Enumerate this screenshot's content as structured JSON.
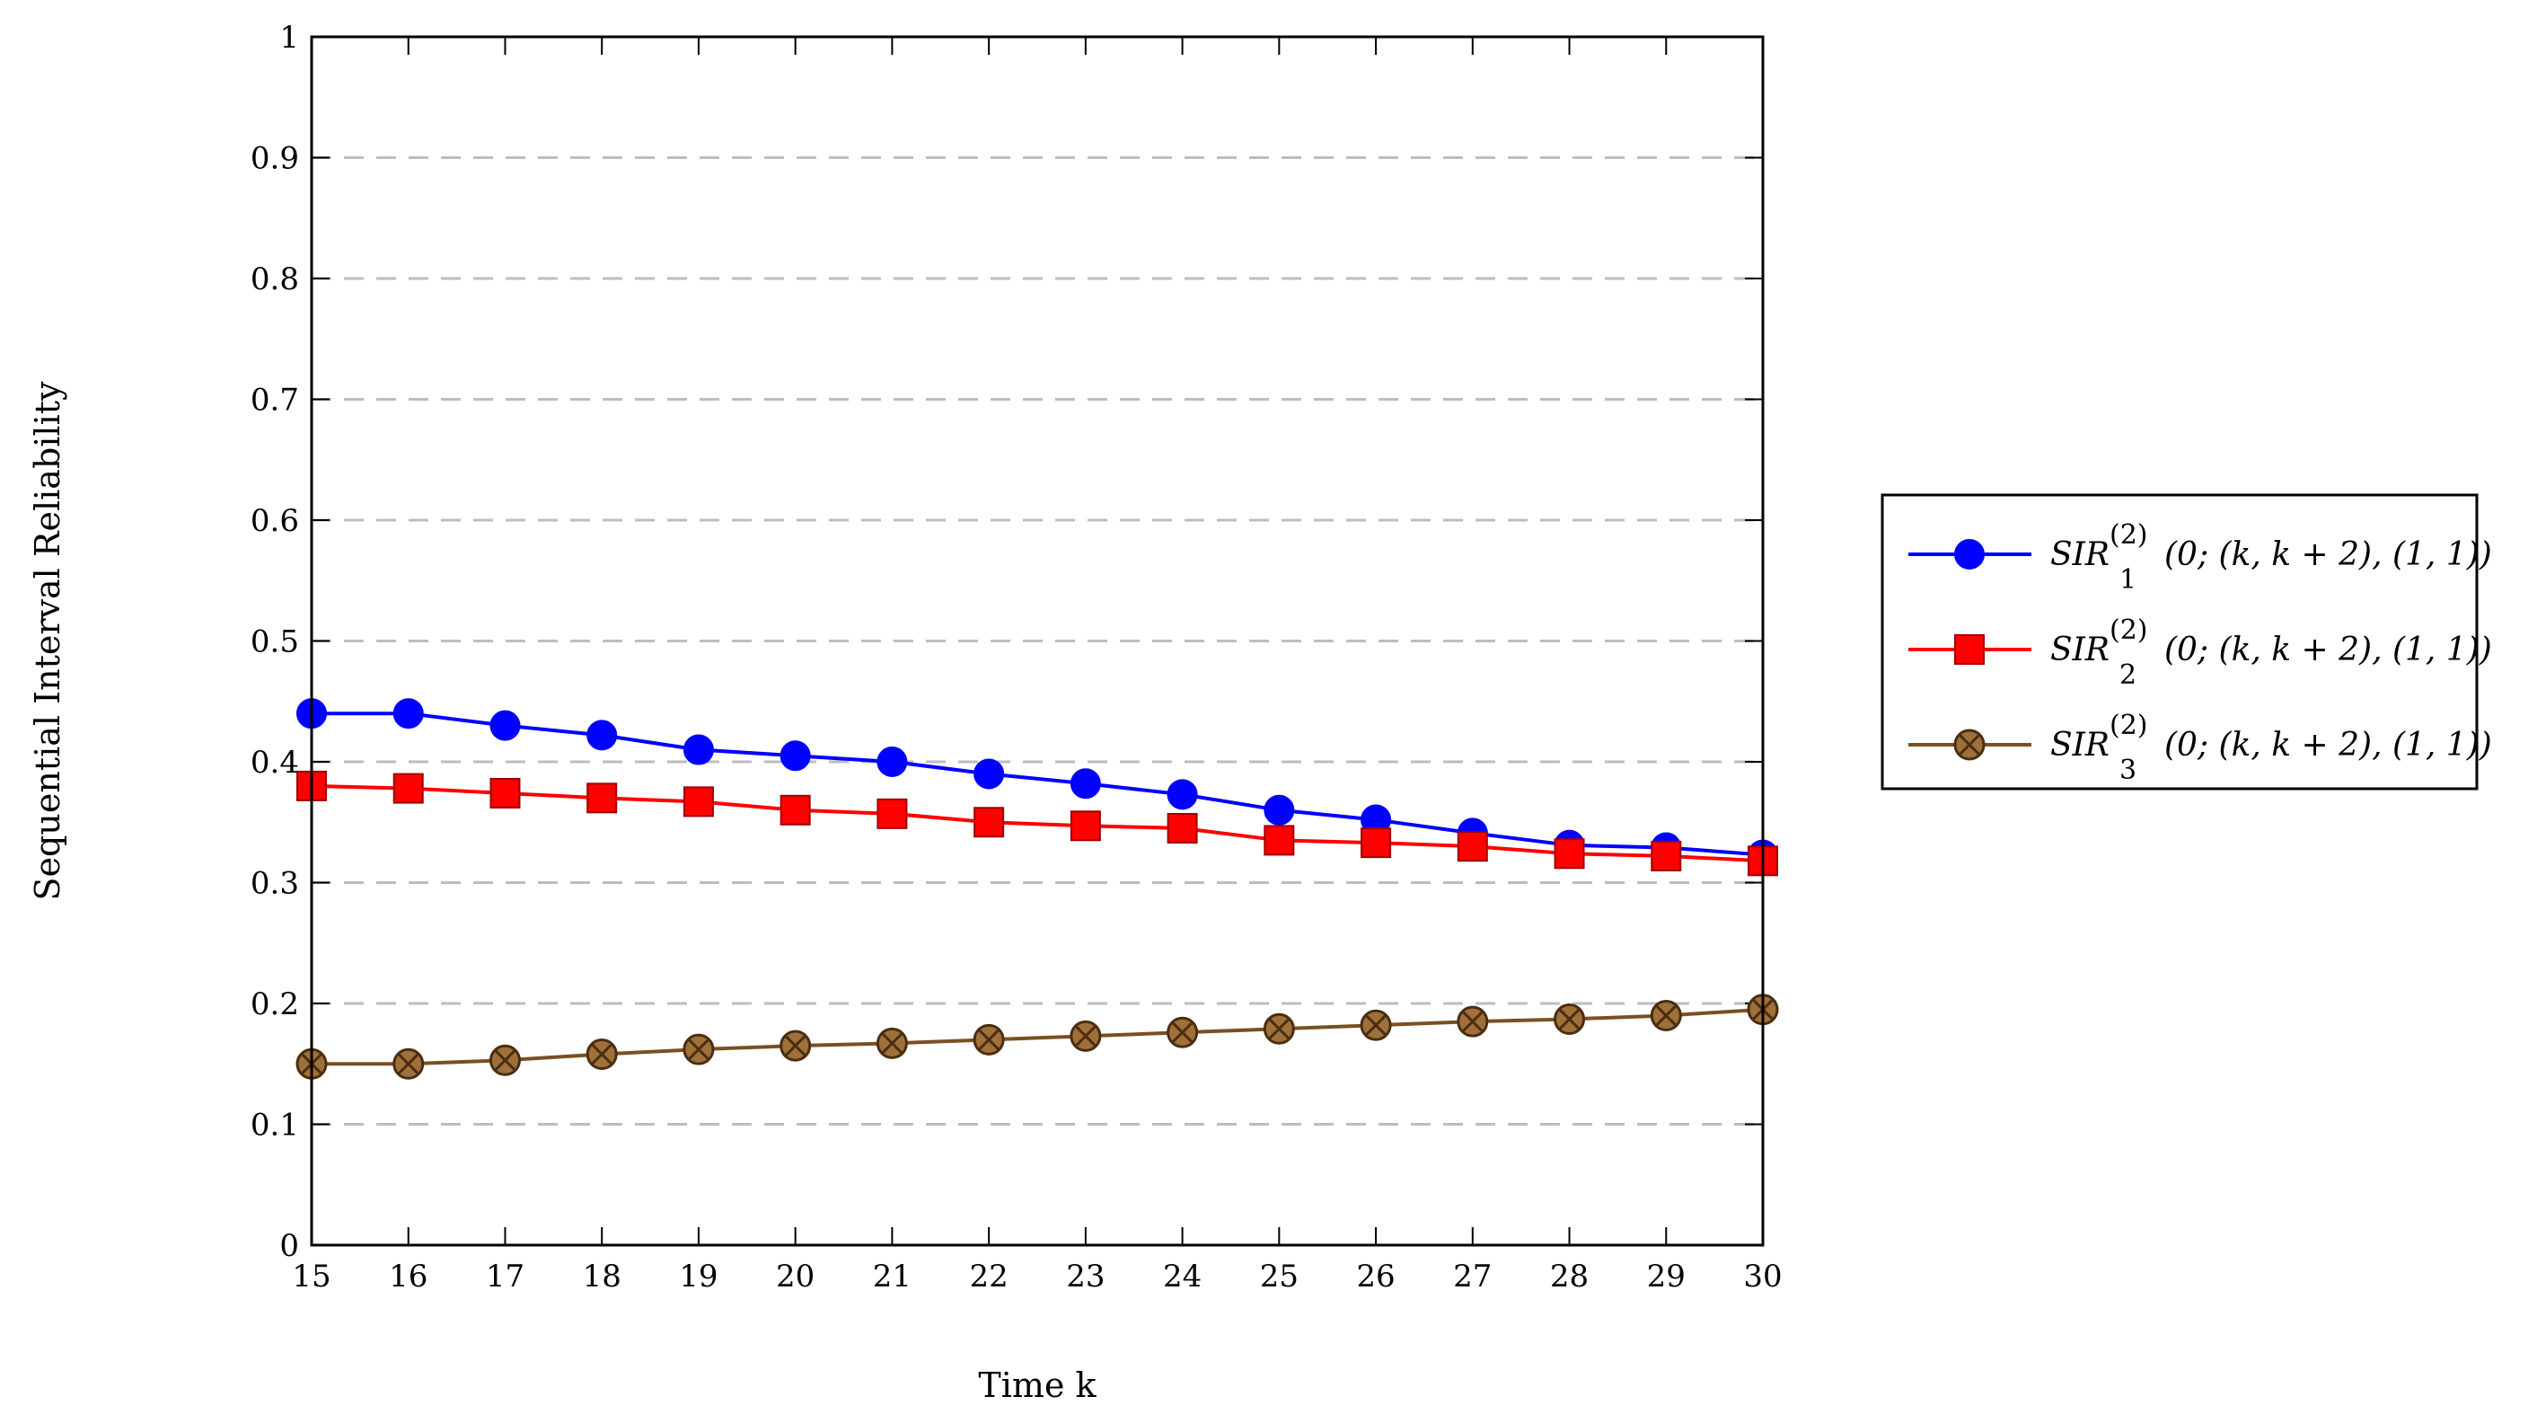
{
  "chart_data": {
    "type": "line",
    "xlabel": "Time k",
    "ylabel": "Sequential Interval Reliability",
    "xlim": [
      15,
      30
    ],
    "ylim": [
      0,
      1
    ],
    "x": [
      15,
      16,
      17,
      18,
      19,
      20,
      21,
      22,
      23,
      24,
      25,
      26,
      27,
      28,
      29,
      30
    ],
    "xticks": [
      "15",
      "16",
      "17",
      "18",
      "19",
      "20",
      "21",
      "22",
      "23",
      "24",
      "25",
      "26",
      "27",
      "28",
      "29",
      "30"
    ],
    "yticks": [
      "0",
      "0.1",
      "0.2",
      "0.3",
      "0.4",
      "0.5",
      "0.6",
      "0.7",
      "0.8",
      "0.9",
      "1"
    ],
    "grid": "horizontal-dashed",
    "legend_position": "right",
    "series": [
      {
        "name": "SIR₁⁽²⁾(0; (k, k + 2), (1, 1))",
        "name_base": "SIR",
        "name_sub": "1",
        "name_sup": "(2)",
        "name_args": "(0; (k, k + 2), (1, 1))",
        "color": "#0000ff",
        "marker": "circle",
        "values": [
          0.44,
          0.44,
          0.43,
          0.422,
          0.41,
          0.405,
          0.4,
          0.39,
          0.382,
          0.373,
          0.36,
          0.352,
          0.341,
          0.331,
          0.329,
          0.323
        ]
      },
      {
        "name": "SIR₂⁽²⁾(0; (k, k + 2), (1, 1))",
        "name_base": "SIR",
        "name_sub": "2",
        "name_sup": "(2)",
        "name_args": "(0; (k, k + 2), (1, 1))",
        "color": "#ff0000",
        "marker": "square",
        "values": [
          0.38,
          0.378,
          0.374,
          0.37,
          0.367,
          0.36,
          0.357,
          0.35,
          0.347,
          0.345,
          0.335,
          0.333,
          0.33,
          0.324,
          0.322,
          0.318
        ]
      },
      {
        "name": "SIR₃⁽²⁾(0; (k, k + 2), (1, 1))",
        "name_base": "SIR",
        "name_sub": "3",
        "name_sup": "(2)",
        "name_args": "(0; (k, k + 2), (1, 1))",
        "color": "#7a4f23",
        "marker": "otimes",
        "values": [
          0.15,
          0.15,
          0.153,
          0.158,
          0.162,
          0.165,
          0.167,
          0.17,
          0.173,
          0.176,
          0.179,
          0.182,
          0.185,
          0.187,
          0.19,
          0.195
        ]
      }
    ]
  }
}
